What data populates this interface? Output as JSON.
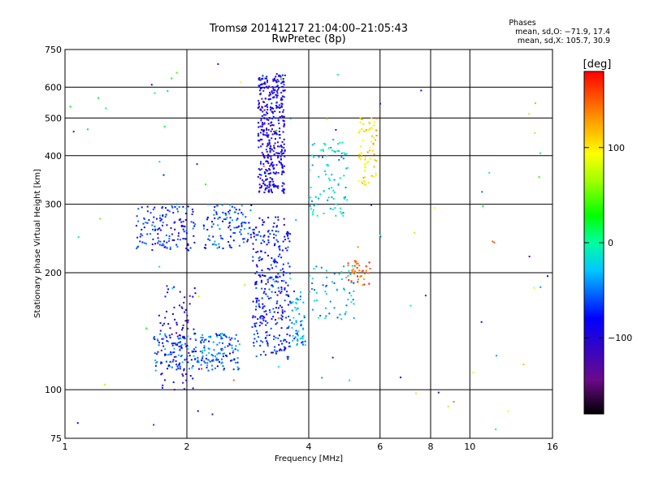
{
  "chart_data": {
    "type": "scatter",
    "title": "Tromsø 20141217 21:04:00–21:05:43",
    "subtitle": "RwPretec (8p)",
    "stats": {
      "heading": "Phases",
      "line_o": "mean, sd,O: −71.9, 17.4",
      "line_x": "mean, sd,X: 105.7, 30.9"
    },
    "xlabel": "Frequency [MHz]",
    "ylabel": "Stationary phase Virtual Height [km]",
    "xscale": "log",
    "yscale": "log",
    "xlim": [
      1,
      16
    ],
    "ylim": [
      75,
      750
    ],
    "xticks": [
      1,
      2,
      4,
      6,
      8,
      10,
      16
    ],
    "xtick_labels": [
      "1",
      "2",
      "4",
      "6",
      "8",
      "10",
      "16"
    ],
    "yticks": [
      75,
      100,
      200,
      300,
      400,
      500,
      600,
      750
    ],
    "ytick_labels": [
      "75",
      "100",
      "200",
      "300",
      "400",
      "500",
      "600",
      "750"
    ],
    "grid": true,
    "colorbar": {
      "label": "[deg]",
      "range": [
        -180,
        180
      ],
      "ticks": [
        100,
        0,
        -100
      ],
      "tick_labels": [
        "100",
        "0",
        "−100"
      ]
    },
    "clusters": [
      {
        "x0": 3.0,
        "x1": 3.5,
        "y0": 320,
        "y1": 650,
        "phase": -95,
        "n": 420
      },
      {
        "x0": 1.5,
        "x1": 2.1,
        "y0": 228,
        "y1": 300,
        "phase": -75,
        "n": 140
      },
      {
        "x0": 2.2,
        "x1": 2.9,
        "y0": 230,
        "y1": 300,
        "phase": -65,
        "n": 110
      },
      {
        "x0": 2.9,
        "x1": 3.6,
        "y0": 120,
        "y1": 280,
        "phase": -80,
        "n": 320
      },
      {
        "x0": 1.65,
        "x1": 2.7,
        "y0": 112,
        "y1": 140,
        "phase": -60,
        "n": 220
      },
      {
        "x0": 1.7,
        "x1": 2.1,
        "y0": 100,
        "y1": 185,
        "phase": -100,
        "n": 90
      },
      {
        "x0": 3.6,
        "x1": 3.95,
        "y0": 130,
        "y1": 180,
        "phase": -40,
        "n": 60
      },
      {
        "x0": 4.0,
        "x1": 5.0,
        "y0": 280,
        "y1": 440,
        "phase": -20,
        "n": 90
      },
      {
        "x0": 4.0,
        "x1": 5.2,
        "y0": 150,
        "y1": 210,
        "phase": -30,
        "n": 60
      },
      {
        "x0": 5.3,
        "x1": 5.9,
        "y0": 330,
        "y1": 500,
        "phase": 105,
        "n": 70
      },
      {
        "x0": 5.0,
        "x1": 5.7,
        "y0": 185,
        "y1": 215,
        "phase": 150,
        "n": 40
      },
      {
        "x0": 1.0,
        "x1": 16.0,
        "y0": 78,
        "y1": 700,
        "phase": 0,
        "n": 90
      }
    ]
  }
}
